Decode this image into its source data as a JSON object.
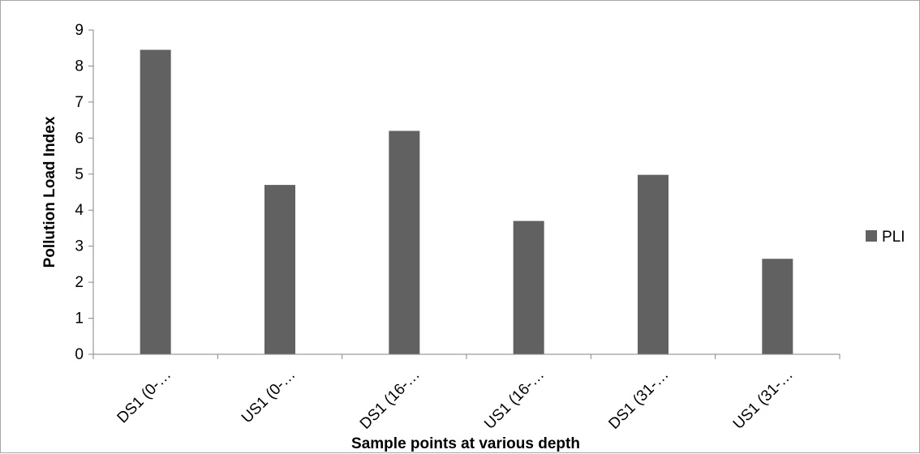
{
  "chart_data": {
    "type": "bar",
    "categories": [
      "DS1 (0-…",
      "US1 (0-…",
      "DS1 (16-…",
      "US1 (16-…",
      "DS1 (31-…",
      "US1 (31-…"
    ],
    "series": [
      {
        "name": "PLI",
        "values": [
          8.45,
          4.7,
          6.2,
          3.7,
          4.98,
          2.65
        ],
        "color": "#616161"
      }
    ],
    "title": "",
    "xlabel": "Sample points at various depth",
    "ylabel": "Pollution Load Index",
    "ylim": [
      0,
      9
    ],
    "yticks": [
      "0",
      "1",
      "2",
      "3",
      "4",
      "5",
      "6",
      "7",
      "8",
      "9"
    ],
    "grid": false,
    "legend_position": "right"
  }
}
